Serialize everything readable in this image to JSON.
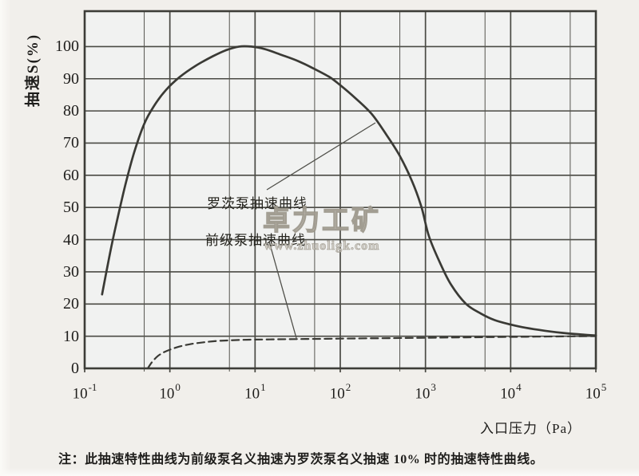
{
  "page": {
    "note": "注：此抽速特性曲线为前级泵名义抽速为罗茨泵名义抽速 10% 时的抽速特性曲线。",
    "watermark_brand": "卓力工矿",
    "watermark_url": "www.zhuoligk.com"
  },
  "colors": {
    "paper": "#f1efeb",
    "plot_fill": "#f1f2f1",
    "grid_major": "#4a4a44",
    "grid_minor": "#55554e",
    "border": "#3d3d38",
    "curve": "#3a3a35",
    "leader_line": "#4f4f49",
    "text": "#1e1d1b",
    "watermark": "#c9c5bc"
  },
  "chart_data": {
    "type": "line",
    "title": "",
    "xlabel": "入口压力（Pa）",
    "ylabel": "抽速S(%)",
    "x_scale": "log",
    "xlim": [
      0.1,
      100000
    ],
    "ylim": [
      0,
      111
    ],
    "y_ticks": [
      0,
      10,
      20,
      30,
      40,
      50,
      60,
      70,
      80,
      90,
      100
    ],
    "x_tick_exponents": [
      -1,
      0,
      1,
      2,
      3,
      4,
      5
    ],
    "x_minor_gridlines_at_mantissa": 5,
    "grid": "on",
    "legend_position": "inline annotations with leader lines",
    "annotations": [
      {
        "label": "罗茨泵抽速曲线",
        "series": "roots"
      },
      {
        "label": "前级泵抽速曲线",
        "series": "backing"
      }
    ],
    "series": [
      {
        "id": "roots",
        "name": "罗茨泵抽速曲线",
        "style": "solid",
        "points": [
          [
            0.16,
            23
          ],
          [
            0.18,
            30
          ],
          [
            0.21,
            39
          ],
          [
            0.25,
            48
          ],
          [
            0.3,
            57
          ],
          [
            0.38,
            67
          ],
          [
            0.5,
            76
          ],
          [
            0.65,
            81.5
          ],
          [
            0.9,
            86.5
          ],
          [
            1.3,
            90.5
          ],
          [
            2.0,
            94
          ],
          [
            3.2,
            97
          ],
          [
            4.5,
            98.8
          ],
          [
            6.5,
            100
          ],
          [
            9,
            100
          ],
          [
            13,
            99.2
          ],
          [
            20,
            97.5
          ],
          [
            32,
            95.5
          ],
          [
            50,
            93
          ],
          [
            75,
            90.5
          ],
          [
            100,
            88
          ],
          [
            150,
            84
          ],
          [
            235,
            79
          ],
          [
            350,
            72.5
          ],
          [
            500,
            66
          ],
          [
            700,
            58
          ],
          [
            900,
            50
          ],
          [
            1100,
            41
          ],
          [
            1500,
            32.5
          ],
          [
            2000,
            26
          ],
          [
            3000,
            20
          ],
          [
            4500,
            17
          ],
          [
            6500,
            15
          ],
          [
            10000,
            13.6
          ],
          [
            15000,
            12.6
          ],
          [
            25000,
            11.7
          ],
          [
            45000,
            10.9
          ],
          [
            70000,
            10.5
          ],
          [
            100000,
            10.2
          ]
        ]
      },
      {
        "id": "backing",
        "name": "前级泵抽速曲线",
        "style": "dashed",
        "points": [
          [
            0.55,
            0
          ],
          [
            0.62,
            2
          ],
          [
            0.72,
            3.8
          ],
          [
            0.85,
            5
          ],
          [
            1.0,
            5.8
          ],
          [
            1.3,
            6.8
          ],
          [
            1.8,
            7.6
          ],
          [
            2.5,
            8.1
          ],
          [
            3.5,
            8.5
          ],
          [
            5,
            8.7
          ],
          [
            8,
            8.9
          ],
          [
            15,
            9.0
          ],
          [
            30,
            9.1
          ],
          [
            70,
            9.2
          ],
          [
            150,
            9.3
          ],
          [
            400,
            9.4
          ],
          [
            1000,
            9.5
          ],
          [
            3000,
            9.65
          ],
          [
            8000,
            9.75
          ],
          [
            20000,
            9.85
          ],
          [
            50000,
            9.95
          ],
          [
            100000,
            10.0
          ]
        ]
      }
    ]
  }
}
